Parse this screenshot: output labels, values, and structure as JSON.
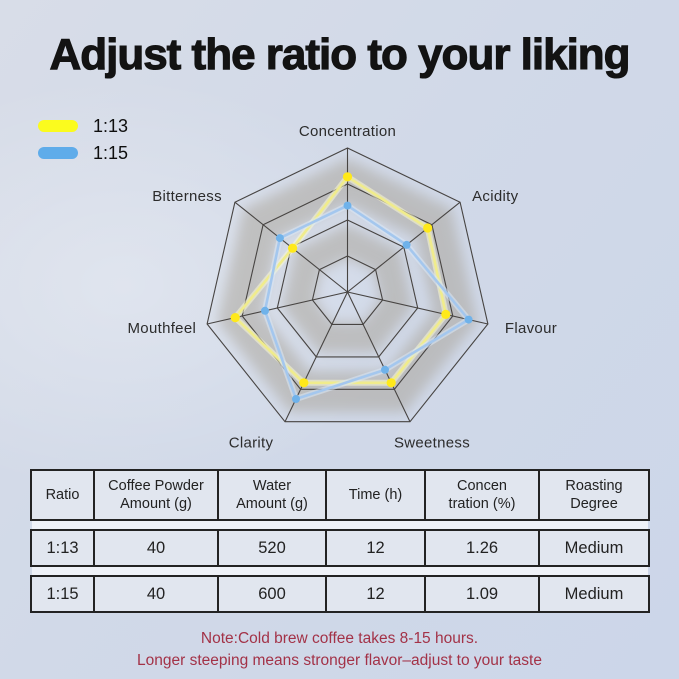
{
  "title": "Adjust the ratio to your liking",
  "legend": {
    "items": [
      {
        "label": "1:13",
        "color": "#FBFB1E"
      },
      {
        "label": "1:15",
        "color": "#5FACEA"
      }
    ]
  },
  "chart_data": {
    "type": "radar",
    "axes": [
      "Concentration",
      "Acidity",
      "Flavour",
      "Sweetness",
      "Clarity",
      "Mouthfeel",
      "Bitterness"
    ],
    "scale_max": 4,
    "rings": 4,
    "grid_on": true,
    "legend_position": "top-left",
    "series": [
      {
        "name": "1:13",
        "swatch_color": "#FBFB1E",
        "line_color": "#F0EC8C",
        "halo_color": "#FCF9D0",
        "dot_color": "#FFE91A",
        "dot_radius": 4.6,
        "values": [
          3.2,
          2.85,
          2.8,
          2.8,
          2.8,
          3.2,
          1.95
        ]
      },
      {
        "name": "1:15",
        "swatch_color": "#5FACEA",
        "line_color": "#A4C7EE",
        "halo_color": "#D8E7F7",
        "dot_color": "#6FB2EA",
        "dot_radius": 4.0,
        "values": [
          2.4,
          2.1,
          3.45,
          2.4,
          3.3,
          2.35,
          2.4
        ]
      }
    ],
    "grid_color": "#474442",
    "band_color": "#A39B8D"
  },
  "table": {
    "columns": [
      {
        "lines": [
          "Ratio"
        ]
      },
      {
        "lines": [
          "Coffee Powder",
          "Amount  (g)"
        ]
      },
      {
        "lines": [
          "Water",
          "Amount  (g)"
        ]
      },
      {
        "lines": [
          "Time (h)"
        ]
      },
      {
        "lines": [
          "Concen",
          "tration (%)"
        ]
      },
      {
        "lines": [
          "Roasting",
          "Degree"
        ]
      }
    ],
    "rows": [
      {
        "cells": [
          "1:13",
          "40",
          "520",
          "12",
          "1.26",
          "Medium"
        ]
      },
      {
        "cells": [
          "1:15",
          "40",
          "600",
          "12",
          "1.09",
          "Medium"
        ]
      }
    ]
  },
  "note": {
    "line1": "Note:Cold brew coffee takes 8-15 hours.",
    "line2": "Longer steeping means stronger flavor–adjust to your taste"
  }
}
